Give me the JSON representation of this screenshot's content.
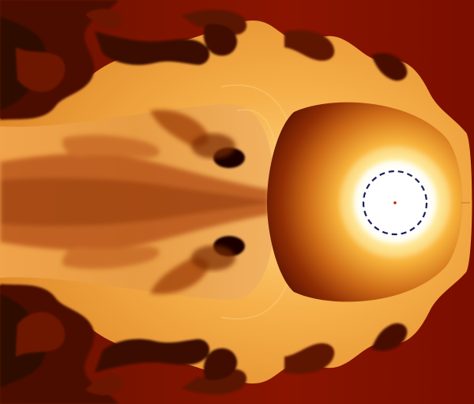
{
  "image": {
    "kind": "hydrodynamic simulation rendering",
    "description_visible_text": "",
    "colors": {
      "background_dark": "#7a0d00",
      "deep_red": "#8e1900",
      "dark_brown": "#3b0a00",
      "orange": "#e0861f",
      "light_orange": "#f6b04a",
      "pale_yellow": "#ffe0a0",
      "white_core": "#ffffff",
      "dashed_circle": "#1b1e5a",
      "center_dot": "#cc2200"
    }
  }
}
